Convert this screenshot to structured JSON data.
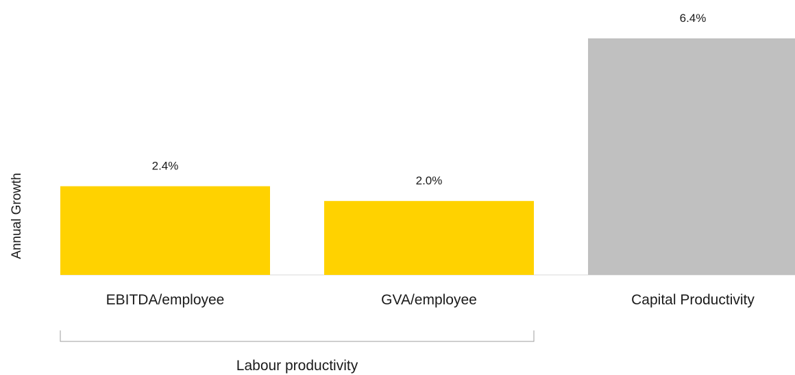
{
  "chart_data": {
    "type": "bar",
    "title": "",
    "xlabel": "",
    "ylabel": "Annual Growth",
    "ylim": [
      0,
      6.4
    ],
    "grid": false,
    "categories": [
      "EBITDA/employee",
      "GVA/employee",
      "Capital Productivity"
    ],
    "values": [
      2.4,
      2.0,
      6.4
    ],
    "value_labels": [
      "2.4%",
      "2.0%",
      "6.4%"
    ],
    "colors": [
      "#ffd200",
      "#ffd200",
      "#c0c0c0"
    ],
    "groups": [
      {
        "label": "Labour productivity",
        "categories": [
          "EBITDA/employee",
          "GVA/employee"
        ]
      }
    ]
  }
}
